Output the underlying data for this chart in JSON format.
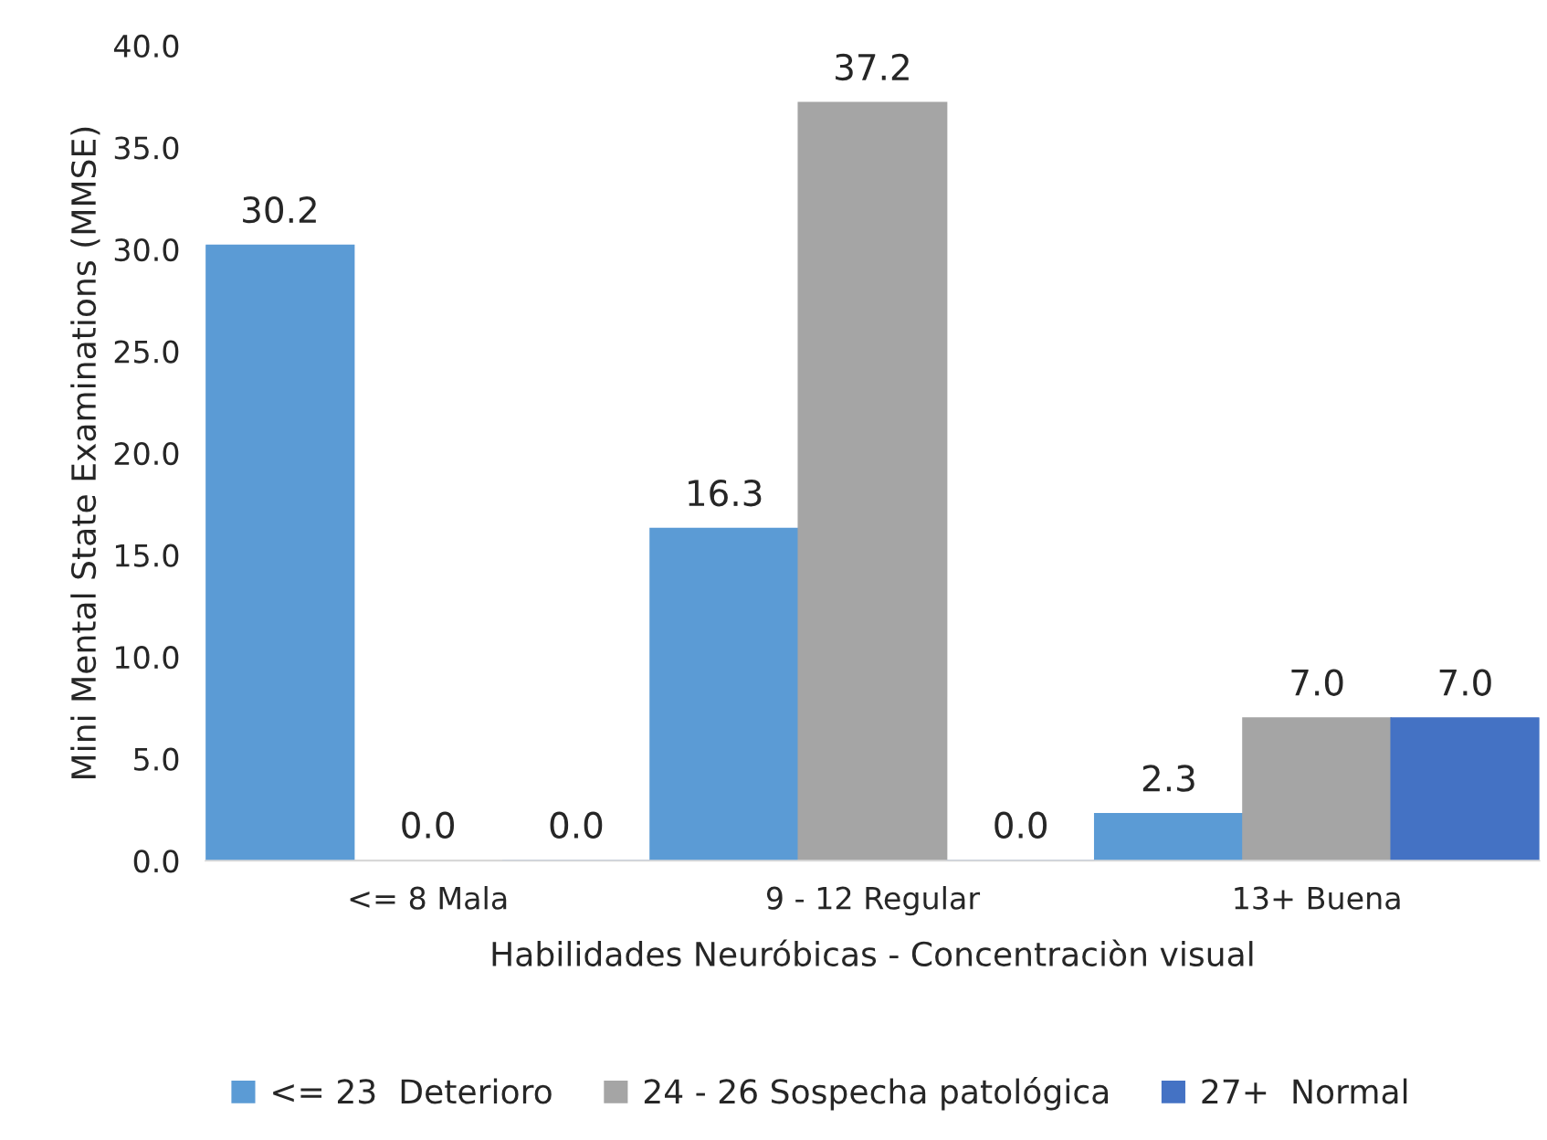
{
  "chart_data": {
    "type": "bar",
    "xlabel": "Habilidades Neuróbicas - Concentraciòn visual",
    "ylabel": "Mini Mental State Examinations (MMSE)",
    "categories": [
      "<= 8 Mala",
      "9 - 12 Regular",
      "13+ Buena"
    ],
    "series": [
      {
        "name": "<= 23  Deterioro",
        "color": "#5b9bd5",
        "values": [
          30.2,
          16.3,
          2.3
        ],
        "value_labels": [
          "30.2",
          "16.3",
          "2.3"
        ]
      },
      {
        "name": "24 - 26 Sospecha patológica",
        "color": "#a5a5a5",
        "values": [
          0.0,
          37.2,
          7.0
        ],
        "value_labels": [
          "0.0",
          "37.2",
          "7.0"
        ]
      },
      {
        "name": "27+  Normal",
        "color": "#4472c4",
        "values": [
          0.0,
          0.0,
          7.0
        ],
        "value_labels": [
          "0.0",
          "0.0",
          "7.0"
        ]
      }
    ],
    "ylim": [
      0,
      40
    ],
    "yticks": [
      {
        "value": 0,
        "label": "0.0"
      },
      {
        "value": 5,
        "label": "5.0"
      },
      {
        "value": 10,
        "label": "10.0"
      },
      {
        "value": 15,
        "label": "15.0"
      },
      {
        "value": 20,
        "label": "20.0"
      },
      {
        "value": 25,
        "label": "25.0"
      },
      {
        "value": 30,
        "label": "30.0"
      },
      {
        "value": 35,
        "label": "35.0"
      },
      {
        "value": 40,
        "label": "40.0"
      }
    ],
    "legend": "bottom",
    "grid": false
  }
}
